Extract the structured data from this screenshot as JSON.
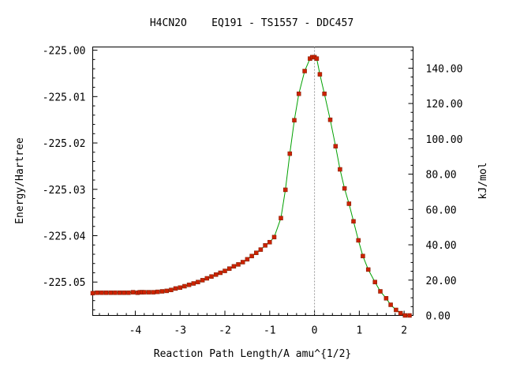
{
  "chart_data": {
    "type": "line",
    "title": "H4CN2O    EQ191 - TS1557 - DDC457",
    "xlabel": "Reaction Path Length/A amu^{1/2}",
    "ylabel": "Energy/Hartree",
    "y2label": "kJ/mol",
    "xlim": [
      -4.95,
      2.2
    ],
    "ylim": [
      -225.0572,
      -224.9993
    ],
    "y2lim": [
      0.0,
      152.0
    ],
    "x_ticks": [
      -4,
      -3,
      -2,
      -1,
      0,
      1,
      2
    ],
    "x_tick_labels": [
      "-4",
      "-3",
      "-2",
      "-1",
      "0",
      "1",
      "2"
    ],
    "y_ticks": [
      -225.0,
      -225.01,
      -225.02,
      -225.03,
      -225.04,
      -225.05
    ],
    "y_tick_labels": [
      "-225.00",
      "-225.01",
      "-225.02",
      "-225.03",
      "-225.04",
      "-225.05"
    ],
    "y2_ticks": [
      0,
      20,
      40,
      60,
      80,
      100,
      120,
      140
    ],
    "y2_tick_labels": [
      "0.00",
      "20.00",
      "40.00",
      "60.00",
      "80.00",
      "100.00",
      "120.00",
      "140.00"
    ],
    "ts_marker_x": 0.0,
    "grid": false,
    "colors": {
      "line": "#00a000",
      "marker": "#cc2200",
      "ts_line": "#999999"
    },
    "series": [
      {
        "x": [
          -4.95,
          -4.85,
          -4.75,
          -4.65,
          -4.55,
          -4.45,
          -4.35,
          -4.25,
          -4.15,
          -4.05,
          -3.95,
          -3.9,
          -3.85,
          -3.8,
          -3.7,
          -3.6,
          -3.5,
          -3.4,
          -3.3,
          -3.2,
          -3.1,
          -3.0,
          -2.9,
          -2.8,
          -2.7,
          -2.6,
          -2.5,
          -2.4,
          -2.3,
          -2.2,
          -2.1,
          -2.0,
          -1.9,
          -1.8,
          -1.7,
          -1.6,
          -1.5,
          -1.4,
          -1.3,
          -1.2,
          -1.1,
          -1.0,
          -0.9,
          -0.75,
          -0.65,
          -0.55,
          -0.45,
          -0.35,
          -0.22,
          -0.1,
          -0.05,
          0.0,
          0.05,
          0.12,
          0.22,
          0.35,
          0.47,
          0.57,
          0.67,
          0.77,
          0.87,
          0.98,
          1.08,
          1.2,
          1.35,
          1.47,
          1.6,
          1.7,
          1.82,
          1.92,
          2.02,
          2.12
        ],
        "values": [
          -225.0524,
          -225.0523,
          -225.0523,
          -225.0523,
          -225.0523,
          -225.0523,
          -225.0523,
          -225.0523,
          -225.0523,
          -225.0522,
          -225.0523,
          -225.0522,
          -225.0522,
          -225.0522,
          -225.0522,
          -225.0522,
          -225.0521,
          -225.052,
          -225.0519,
          -225.0517,
          -225.0514,
          -225.0512,
          -225.0509,
          -225.0506,
          -225.0503,
          -225.05,
          -225.0496,
          -225.0492,
          -225.0488,
          -225.0484,
          -225.048,
          -225.0476,
          -225.0471,
          -225.0466,
          -225.0462,
          -225.0457,
          -225.0451,
          -225.0444,
          -225.0437,
          -225.043,
          -225.0421,
          -225.0414,
          -225.0403,
          -225.0362,
          -225.0301,
          -225.0223,
          -225.0151,
          -225.0094,
          -225.0045,
          -225.0018,
          -225.0015,
          -225.0015,
          -225.0018,
          -225.0052,
          -225.0094,
          -225.015,
          -225.0207,
          -225.0257,
          -225.0298,
          -225.0331,
          -225.0369,
          -225.041,
          -225.0444,
          -225.0473,
          -225.05,
          -225.052,
          -225.0535,
          -225.0549,
          -225.056,
          -225.0567,
          -225.0572,
          -225.0572
        ]
      }
    ]
  }
}
